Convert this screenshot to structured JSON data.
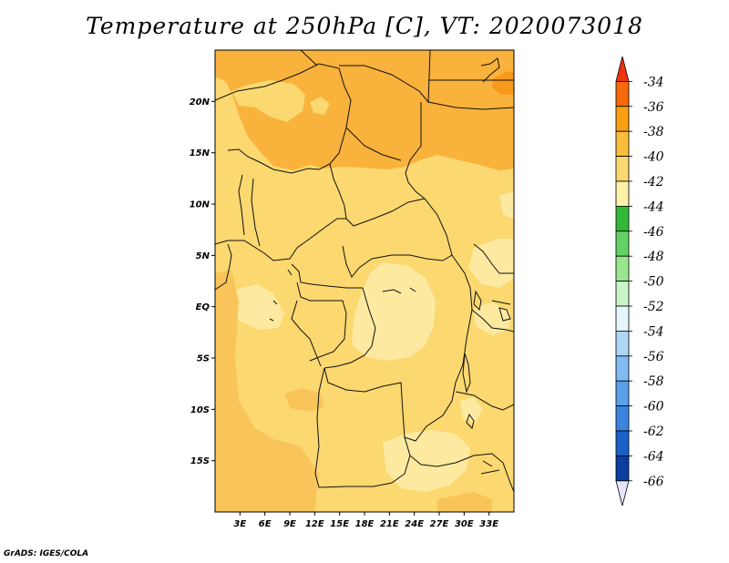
{
  "title": "Temperature at 250hPa [C], VT: 2020073018",
  "credit": "GrADS: IGES/COLA",
  "map": {
    "lon_range": [
      0,
      36
    ],
    "lat_range": [
      -20,
      25
    ],
    "lon_ticks": [
      {
        "lon": 3,
        "label": "3E"
      },
      {
        "lon": 6,
        "label": "6E"
      },
      {
        "lon": 9,
        "label": "9E"
      },
      {
        "lon": 12,
        "label": "12E"
      },
      {
        "lon": 15,
        "label": "15E"
      },
      {
        "lon": 18,
        "label": "18E"
      },
      {
        "lon": 21,
        "label": "21E"
      },
      {
        "lon": 24,
        "label": "24E"
      },
      {
        "lon": 27,
        "label": "27E"
      },
      {
        "lon": 30,
        "label": "30E"
      },
      {
        "lon": 33,
        "label": "33E"
      }
    ],
    "lat_ticks": [
      {
        "lat": 20,
        "label": "20N"
      },
      {
        "lat": 15,
        "label": "15N"
      },
      {
        "lat": 10,
        "label": "10N"
      },
      {
        "lat": 5,
        "label": "5N"
      },
      {
        "lat": 0,
        "label": "EQ"
      },
      {
        "lat": -5,
        "label": "5S"
      },
      {
        "lat": -10,
        "label": "10S"
      },
      {
        "lat": -15,
        "label": "15S"
      }
    ],
    "background_color": "#fbd870"
  },
  "colorbar": {
    "labels": [
      "-34",
      "-36",
      "-38",
      "-40",
      "-42",
      "-44",
      "-46",
      "-48",
      "-50",
      "-52",
      "-54",
      "-56",
      "-58",
      "-60",
      "-62",
      "-64",
      "-66"
    ],
    "colors": [
      "#f0330f",
      "#f76a0a",
      "#f9a012",
      "#fbbe3c",
      "#fbd870",
      "#fdf2a8",
      "#34b838",
      "#62d264",
      "#9ae68e",
      "#c8f5c8",
      "#e4f5fb",
      "#aed6f5",
      "#82bbf0",
      "#5aa0ea",
      "#3a84e0",
      "#1a62c8",
      "#0b3ea0",
      "#081c6e",
      "#e4e4fa"
    ]
  }
}
